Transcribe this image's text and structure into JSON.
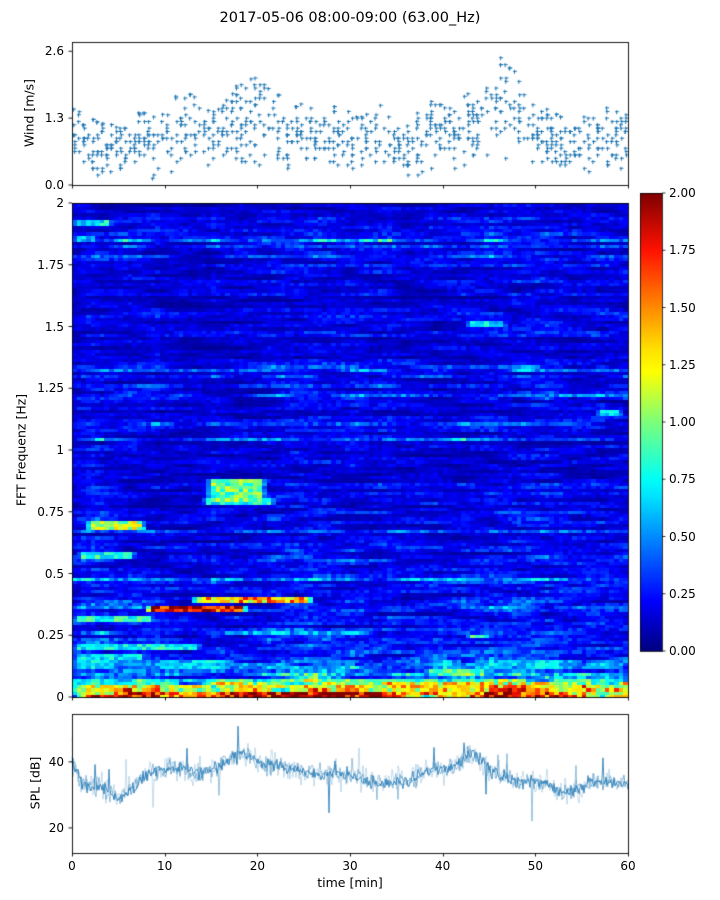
{
  "title": "2017-05-06 08:00-09:00 (63.00_Hz)",
  "colors": {
    "accent": "#1f77b4",
    "axis": "#000000",
    "background": "#ffffff"
  },
  "chart_data": [
    {
      "id": "wind",
      "type": "scatter",
      "ylabel": "Wind [m/s]",
      "ylim": [
        0,
        2.78
      ],
      "yticks": [
        0.0,
        1.3,
        2.6
      ],
      "ytick_labels": [
        "0.0",
        "1.3",
        "2.6"
      ],
      "xlim": [
        0,
        60
      ],
      "marker": "plus",
      "marker_color": "#1f77b4",
      "quantize_step": 0.065,
      "slots_per_minute": 2,
      "seed": 42,
      "per_minute_center": [
        1.0,
        0.95,
        0.8,
        0.7,
        0.75,
        0.7,
        0.8,
        0.9,
        0.9,
        0.8,
        0.9,
        1.0,
        1.1,
        1.15,
        1.0,
        0.9,
        1.0,
        1.1,
        1.2,
        1.3,
        1.25,
        1.3,
        1.15,
        1.0,
        1.0,
        1.05,
        1.0,
        0.9,
        1.0,
        1.0,
        0.9,
        0.8,
        0.9,
        1.0,
        0.9,
        0.7,
        0.7,
        0.8,
        1.0,
        1.1,
        1.0,
        1.0,
        1.1,
        1.2,
        1.3,
        1.4,
        1.5,
        1.5,
        1.4,
        1.2,
        1.1,
        1.0,
        0.9,
        0.8,
        0.7,
        0.8,
        0.9,
        1.0,
        0.9,
        0.8,
        0.9
      ],
      "per_minute_spread": [
        0.5,
        0.5,
        0.5,
        0.5,
        0.45,
        0.4,
        0.4,
        0.5,
        0.5,
        0.5,
        0.5,
        0.6,
        0.6,
        0.6,
        0.6,
        0.5,
        0.5,
        0.6,
        0.7,
        0.7,
        0.7,
        0.6,
        0.6,
        0.6,
        0.5,
        0.5,
        0.5,
        0.5,
        0.5,
        0.6,
        0.5,
        0.5,
        0.5,
        0.6,
        0.5,
        0.4,
        0.4,
        0.5,
        0.6,
        0.6,
        0.5,
        0.5,
        0.6,
        0.6,
        0.7,
        0.7,
        0.8,
        0.8,
        0.7,
        0.6,
        0.6,
        0.5,
        0.5,
        0.5,
        0.5,
        0.5,
        0.5,
        0.5,
        0.6,
        0.6,
        0.5
      ],
      "per_minute_max": [
        1.5,
        1.4,
        1.3,
        1.2,
        1.2,
        1.1,
        1.2,
        1.4,
        1.4,
        1.3,
        1.4,
        1.7,
        1.8,
        1.75,
        1.6,
        1.4,
        1.5,
        1.7,
        2.0,
        2.05,
        2.1,
        1.9,
        1.8,
        1.6,
        1.5,
        1.6,
        1.5,
        1.4,
        1.5,
        1.6,
        1.4,
        1.3,
        1.4,
        1.6,
        1.4,
        1.1,
        1.1,
        1.3,
        1.7,
        1.75,
        1.5,
        1.5,
        1.7,
        1.8,
        1.9,
        2.2,
        2.45,
        2.55,
        2.1,
        1.8,
        1.7,
        1.5,
        1.4,
        1.3,
        1.2,
        1.3,
        1.4,
        1.5,
        1.5,
        1.4,
        1.4
      ]
    },
    {
      "id": "spectrogram",
      "type": "heatmap",
      "ylabel": "FFT Frequenz [Hz]",
      "ylim": [
        0,
        2
      ],
      "yticks": [
        0,
        0.25,
        0.5,
        0.75,
        1,
        1.25,
        1.5,
        1.75,
        2
      ],
      "ytick_labels": [
        "0",
        "0.25",
        "0.5",
        "0.75",
        "1",
        "1.25",
        "1.5",
        "1.75",
        "2"
      ],
      "xlim": [
        0,
        60
      ],
      "colormap": "jet",
      "clim": [
        0,
        2
      ],
      "colorbar_tick_values": [
        0,
        0.25,
        0.5,
        0.75,
        1.0,
        1.25,
        1.5,
        1.75,
        2.0
      ],
      "colorbar_tick_labels": [
        "0.00",
        "0.25",
        "0.50",
        "0.75",
        "1.00",
        "1.25",
        "1.50",
        "1.75",
        "2.00"
      ],
      "grid": {
        "cols": 120,
        "rows": 156
      },
      "seed": 7,
      "base_profile": [
        [
          0.0,
          1.7
        ],
        [
          0.01,
          1.6
        ],
        [
          0.02,
          1.35
        ],
        [
          0.04,
          1.0
        ],
        [
          0.06,
          0.75
        ],
        [
          0.09,
          0.5
        ],
        [
          0.12,
          0.38
        ],
        [
          0.16,
          0.3
        ],
        [
          0.22,
          0.26
        ],
        [
          0.3,
          0.24
        ],
        [
          0.5,
          0.22
        ],
        [
          0.8,
          0.2
        ],
        [
          1.2,
          0.19
        ],
        [
          1.6,
          0.19
        ],
        [
          2.0,
          0.2
        ]
      ],
      "dark_columns": [
        {
          "t0": 9.5,
          "t1": 15,
          "factor": 0.78
        },
        {
          "t0": 32,
          "t1": 36,
          "factor": 0.9
        }
      ],
      "features": [
        {
          "f": 0.36,
          "df": 0.015,
          "t0": 8,
          "t1": 19,
          "v": 1.9
        },
        {
          "f": 0.395,
          "df": 0.012,
          "t0": 13,
          "t1": 26,
          "v": 1.45
        },
        {
          "f": 0.32,
          "df": 0.01,
          "t0": 0,
          "t1": 9,
          "v": 0.85
        },
        {
          "f": 0.7,
          "df": 0.015,
          "t0": 1.5,
          "t1": 8,
          "v": 1.15
        },
        {
          "f": 0.575,
          "df": 0.012,
          "t0": 0.5,
          "t1": 7,
          "v": 0.8
        },
        {
          "f": 0.84,
          "df": 0.04,
          "t0": 14.5,
          "t1": 21,
          "v": 0.95
        },
        {
          "f": 0.8,
          "df": 0.012,
          "t0": 14,
          "t1": 22,
          "v": 0.8
        },
        {
          "f": 0.13,
          "df": 0.02,
          "t0": 0,
          "t1": 60,
          "v": 0.55,
          "gaps": true
        },
        {
          "f": 0.105,
          "df": 0.012,
          "t0": 38,
          "t1": 45,
          "v": 0.95
        },
        {
          "f": 0.06,
          "df": 0.02,
          "t0": 0,
          "t1": 60,
          "v": 0.8,
          "gaps": true
        },
        {
          "f": 0.035,
          "df": 0.02,
          "t0": 0,
          "t1": 60,
          "v": 1.2,
          "gaps": true
        },
        {
          "f": 0.015,
          "df": 0.015,
          "t0": 0,
          "t1": 60,
          "v": 1.55,
          "gaps": true
        },
        {
          "f": 0.012,
          "df": 0.012,
          "t0": 15,
          "t1": 30,
          "v": 2.0
        },
        {
          "f": 0.012,
          "df": 0.012,
          "t0": 44,
          "t1": 49,
          "v": 2.0
        },
        {
          "f": 0.045,
          "df": 0.02,
          "t0": 37,
          "t1": 45,
          "v": 1.35
        },
        {
          "f": 0.25,
          "df": 0.01,
          "t0": 42.5,
          "t1": 45.5,
          "v": 0.85
        },
        {
          "f": 1.51,
          "df": 0.012,
          "t0": 42.5,
          "t1": 47,
          "v": 0.7
        },
        {
          "f": 1.15,
          "df": 0.012,
          "t0": 56.5,
          "t1": 59.5,
          "v": 0.75
        },
        {
          "f": 1.92,
          "df": 0.012,
          "t0": 0,
          "t1": 4.5,
          "v": 0.75
        },
        {
          "f": 1.86,
          "df": 0.012,
          "t0": 0,
          "t1": 3,
          "v": 0.6
        },
        {
          "f": 0.21,
          "df": 0.012,
          "t0": 0,
          "t1": 14,
          "v": 0.75
        },
        {
          "f": 0.17,
          "df": 0.012,
          "t0": 0,
          "t1": 8,
          "v": 0.7
        }
      ]
    },
    {
      "id": "spl",
      "type": "line",
      "ylabel": "SPL [dB]",
      "xlabel": "time [min]",
      "ylim": [
        12.4,
        54.5
      ],
      "yticks": [
        20,
        40
      ],
      "ytick_labels": [
        "20",
        "40"
      ],
      "xticks": [
        0,
        10,
        20,
        30,
        40,
        50,
        60
      ],
      "xtick_labels": [
        "0",
        "10",
        "20",
        "30",
        "40",
        "50",
        "60"
      ],
      "line_color": "#1f77b4",
      "x_step_min": 1,
      "noise_db": 2.6,
      "seed": 99,
      "per_minute_db": [
        40,
        34,
        32,
        33,
        31,
        29,
        31,
        33,
        36,
        37,
        38,
        38,
        38,
        37,
        36,
        37,
        39,
        41,
        42,
        42,
        40,
        39,
        39,
        38,
        38,
        37,
        36,
        36,
        37,
        36,
        36,
        35,
        34,
        34,
        34,
        34,
        34,
        35,
        37,
        38,
        38,
        38,
        40,
        43,
        41,
        38,
        36,
        35,
        34,
        34,
        34,
        33,
        32,
        31,
        31,
        32,
        34,
        34,
        34,
        33,
        33
      ]
    }
  ]
}
